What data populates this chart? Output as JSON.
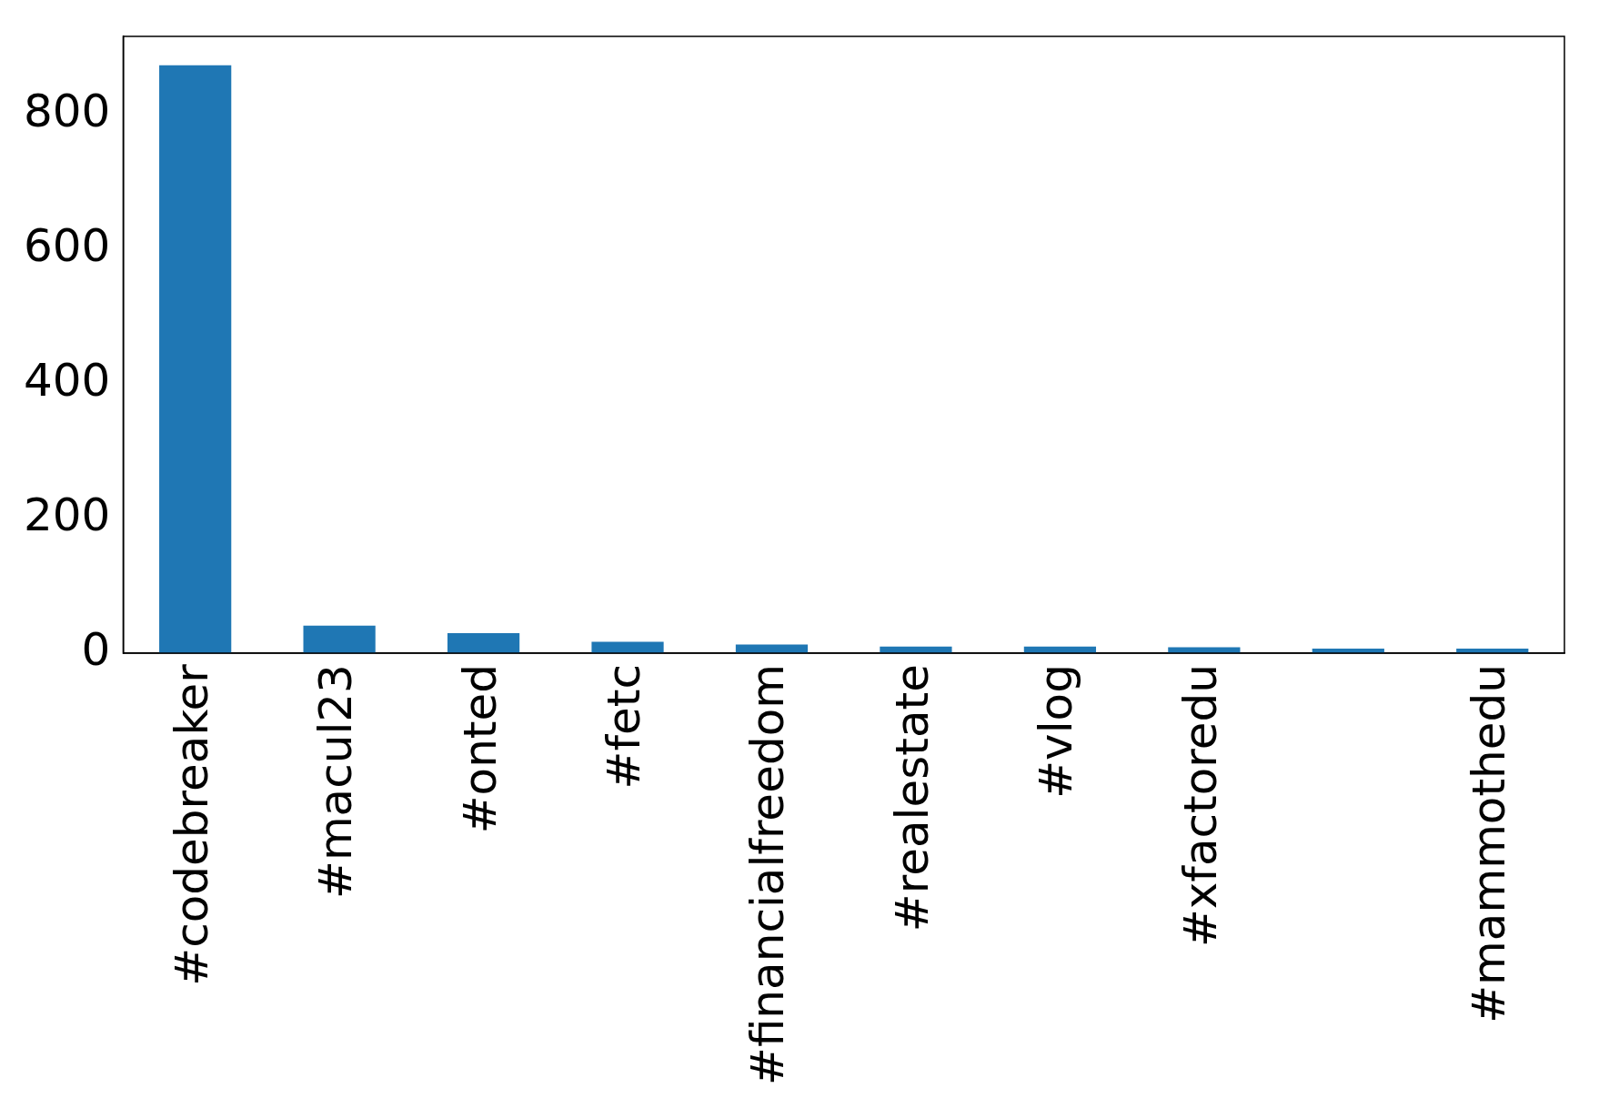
{
  "chart_data": {
    "type": "bar",
    "categories": [
      "#codebreaker",
      "#macul23",
      "#onted",
      "#fetc",
      "#financialfreedom",
      "#realestate",
      "#vlog",
      "#xfactoredu",
      null,
      "#mammothedu"
    ],
    "values": [
      874,
      41,
      30,
      17,
      13,
      10,
      10,
      9,
      7,
      7
    ],
    "color": "#1f77b4",
    "ylim": [
      0,
      917
    ],
    "yticks": [
      0,
      200,
      400,
      600,
      800
    ],
    "grid": false,
    "legend": false
  }
}
